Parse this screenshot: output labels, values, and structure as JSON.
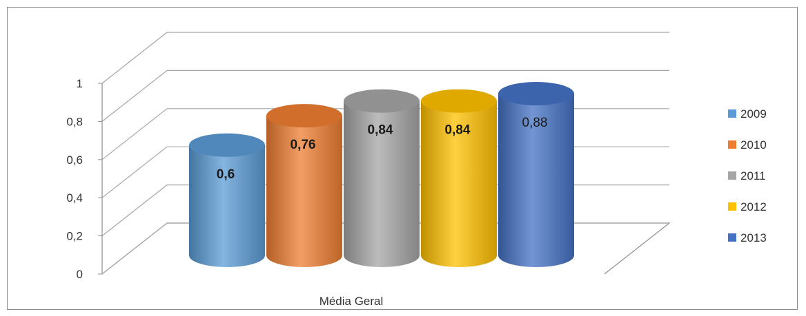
{
  "chart_data": {
    "type": "bar",
    "categories": [
      "Média Geral"
    ],
    "series": [
      {
        "name": "2009",
        "values": [
          0.6
        ],
        "label": "0,6",
        "color": "#5b9bd5"
      },
      {
        "name": "2010",
        "values": [
          0.76
        ],
        "label": "0,76",
        "color": "#ed7d31"
      },
      {
        "name": "2011",
        "values": [
          0.84
        ],
        "label": "0,84",
        "color": "#a5a5a5"
      },
      {
        "name": "2012",
        "values": [
          0.84
        ],
        "label": "0,84",
        "color": "#ffc000"
      },
      {
        "name": "2013",
        "values": [
          0.88
        ],
        "label": "0,88",
        "color": "#4472c4"
      }
    ],
    "yticks": [
      "0",
      "0,2",
      "0,4",
      "0,6",
      "0,8",
      "1"
    ],
    "ylim": [
      0,
      1
    ],
    "grid": true,
    "style": "3d-cylinder",
    "legend": "right",
    "title": "",
    "xlabel": "",
    "ylabel": ""
  }
}
